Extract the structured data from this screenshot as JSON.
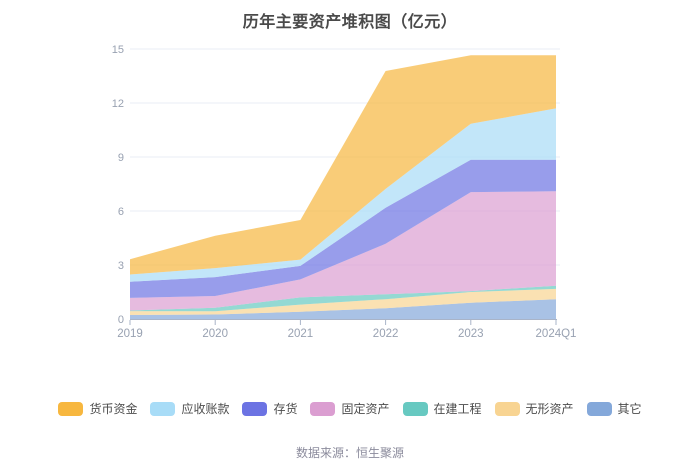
{
  "title": "历年主要资产堆积图（亿元）",
  "footer": {
    "source_label": "数据来源：恒生聚源"
  },
  "chart_data": {
    "type": "area",
    "stacked": true,
    "title": "历年主要资产堆积图（亿元）",
    "xlabel": "",
    "ylabel": "",
    "x_labels": [
      "2019",
      "2020",
      "2021",
      "2022",
      "2023",
      "2024Q1"
    ],
    "y_ticks": [
      0,
      3,
      6,
      9,
      12,
      15
    ],
    "ylim": [
      0,
      15
    ],
    "grid": true,
    "legend_position": "bottom",
    "note": "series listed top-to-bottom of stack; stacking order on chart is reverse (last series at bottom)",
    "series": [
      {
        "name": "货币资金",
        "color": "#F7B73F",
        "values": [
          0.85,
          1.8,
          2.2,
          6.55,
          3.8,
          2.95
        ]
      },
      {
        "name": "应收账款",
        "color": "#A8DCF7",
        "values": [
          0.4,
          0.5,
          0.35,
          1.05,
          2.0,
          2.85
        ]
      },
      {
        "name": "存货",
        "color": "#6C73E3",
        "values": [
          0.9,
          1.05,
          0.75,
          2.0,
          1.8,
          1.75
        ]
      },
      {
        "name": "固定资产",
        "color": "#DB9ED1",
        "values": [
          0.7,
          0.65,
          1.0,
          2.8,
          5.5,
          5.25
        ]
      },
      {
        "name": "在建工程",
        "color": "#67C9C1",
        "values": [
          0.03,
          0.2,
          0.4,
          0.28,
          0.05,
          0.18
        ]
      },
      {
        "name": "无形资产",
        "color": "#F8D492",
        "values": [
          0.22,
          0.18,
          0.4,
          0.5,
          0.6,
          0.57
        ]
      },
      {
        "name": "其它",
        "color": "#84A8DA",
        "values": [
          0.22,
          0.25,
          0.4,
          0.6,
          0.9,
          1.1
        ]
      }
    ],
    "totals": [
      3.32,
      4.63,
      5.5,
      13.78,
      14.65,
      14.65
    ],
    "style": {
      "area_opacity": 0.7,
      "gridline_color": "#E9EDF6",
      "axis_line_color": "#A9B4C8",
      "tick_label_color": "#98A1B1"
    }
  }
}
